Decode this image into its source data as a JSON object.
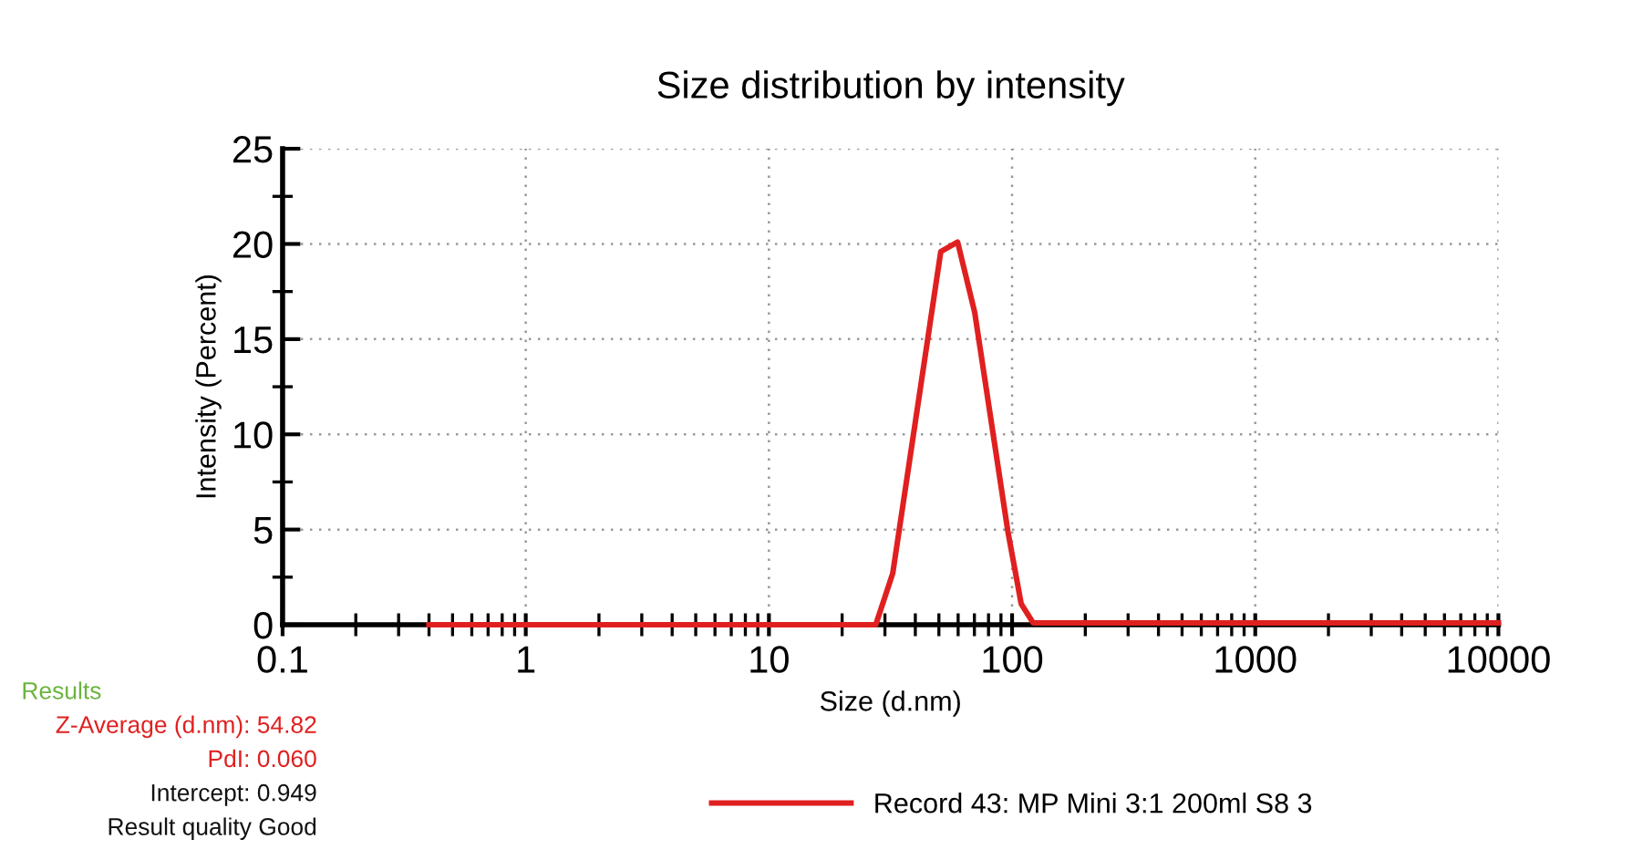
{
  "chart_data": {
    "type": "line",
    "title": "Size distribution by intensity",
    "xlabel": "Size (d.nm)",
    "ylabel": "Intensity (Percent)",
    "log": "x",
    "xlim": [
      0.1,
      10000
    ],
    "xticks": [
      0.1,
      1,
      10,
      100,
      1000,
      10000
    ],
    "ylim": [
      0,
      25
    ],
    "yticks": [
      0,
      5,
      10,
      15,
      20,
      25
    ],
    "grid": true,
    "legend": "bottom",
    "marker": "none",
    "line_style": "solid",
    "series": [
      {
        "name": "Record 43: MP Mini 3:1 200ml S8 3",
        "color": "#e02020",
        "x": [
          0.4,
          27.5,
          32.3,
          50.9,
          59.7,
          70.2,
          96.1,
          109,
          122,
          10000
        ],
        "values": [
          0,
          0,
          2.7,
          19.6,
          20.1,
          16.4,
          4.9,
          1.1,
          0.1,
          0.1
        ]
      }
    ],
    "annotations": [
      "Results",
      "Z-Average (d.nm): 54.82",
      "PdI: 0.060",
      "Intercept: 0.949",
      "Result quality Good"
    ]
  }
}
